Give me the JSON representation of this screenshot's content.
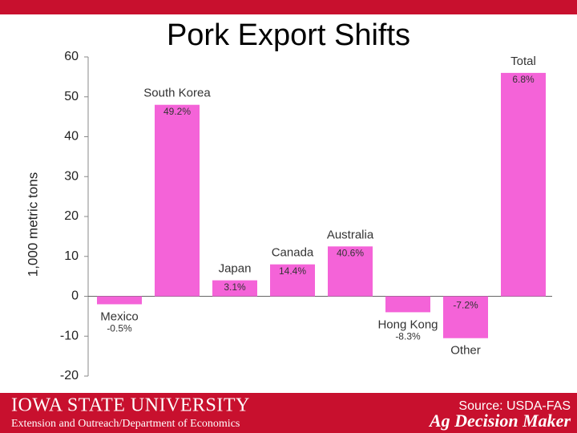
{
  "chart_data": {
    "type": "bar",
    "title": "Pork Export Shifts",
    "y_label": "1,000 metric tons",
    "categories": [
      "Mexico",
      "South Korea",
      "Japan",
      "Canada",
      "Australia",
      "Hong Kong",
      "Other",
      "Total"
    ],
    "values": [
      -2,
      48,
      4,
      8,
      12.5,
      -4,
      -10.5,
      56
    ],
    "change_labels": [
      "-0.5%",
      "49.2%",
      "3.1%",
      "14.4%",
      "40.6%",
      "-8.3%",
      "-7.2%",
      "6.8%"
    ],
    "color": "#f463d8",
    "ylim": [
      -20,
      60
    ],
    "yticks": [
      -20,
      -10,
      0,
      10,
      20,
      30,
      40,
      50,
      60
    ],
    "grid": false
  },
  "footer": {
    "university": "Iowa State University",
    "department": "Extension and Outreach/Department of Economics",
    "source": "Source: USDA-FAS",
    "brand": "Ag Decision Maker"
  }
}
